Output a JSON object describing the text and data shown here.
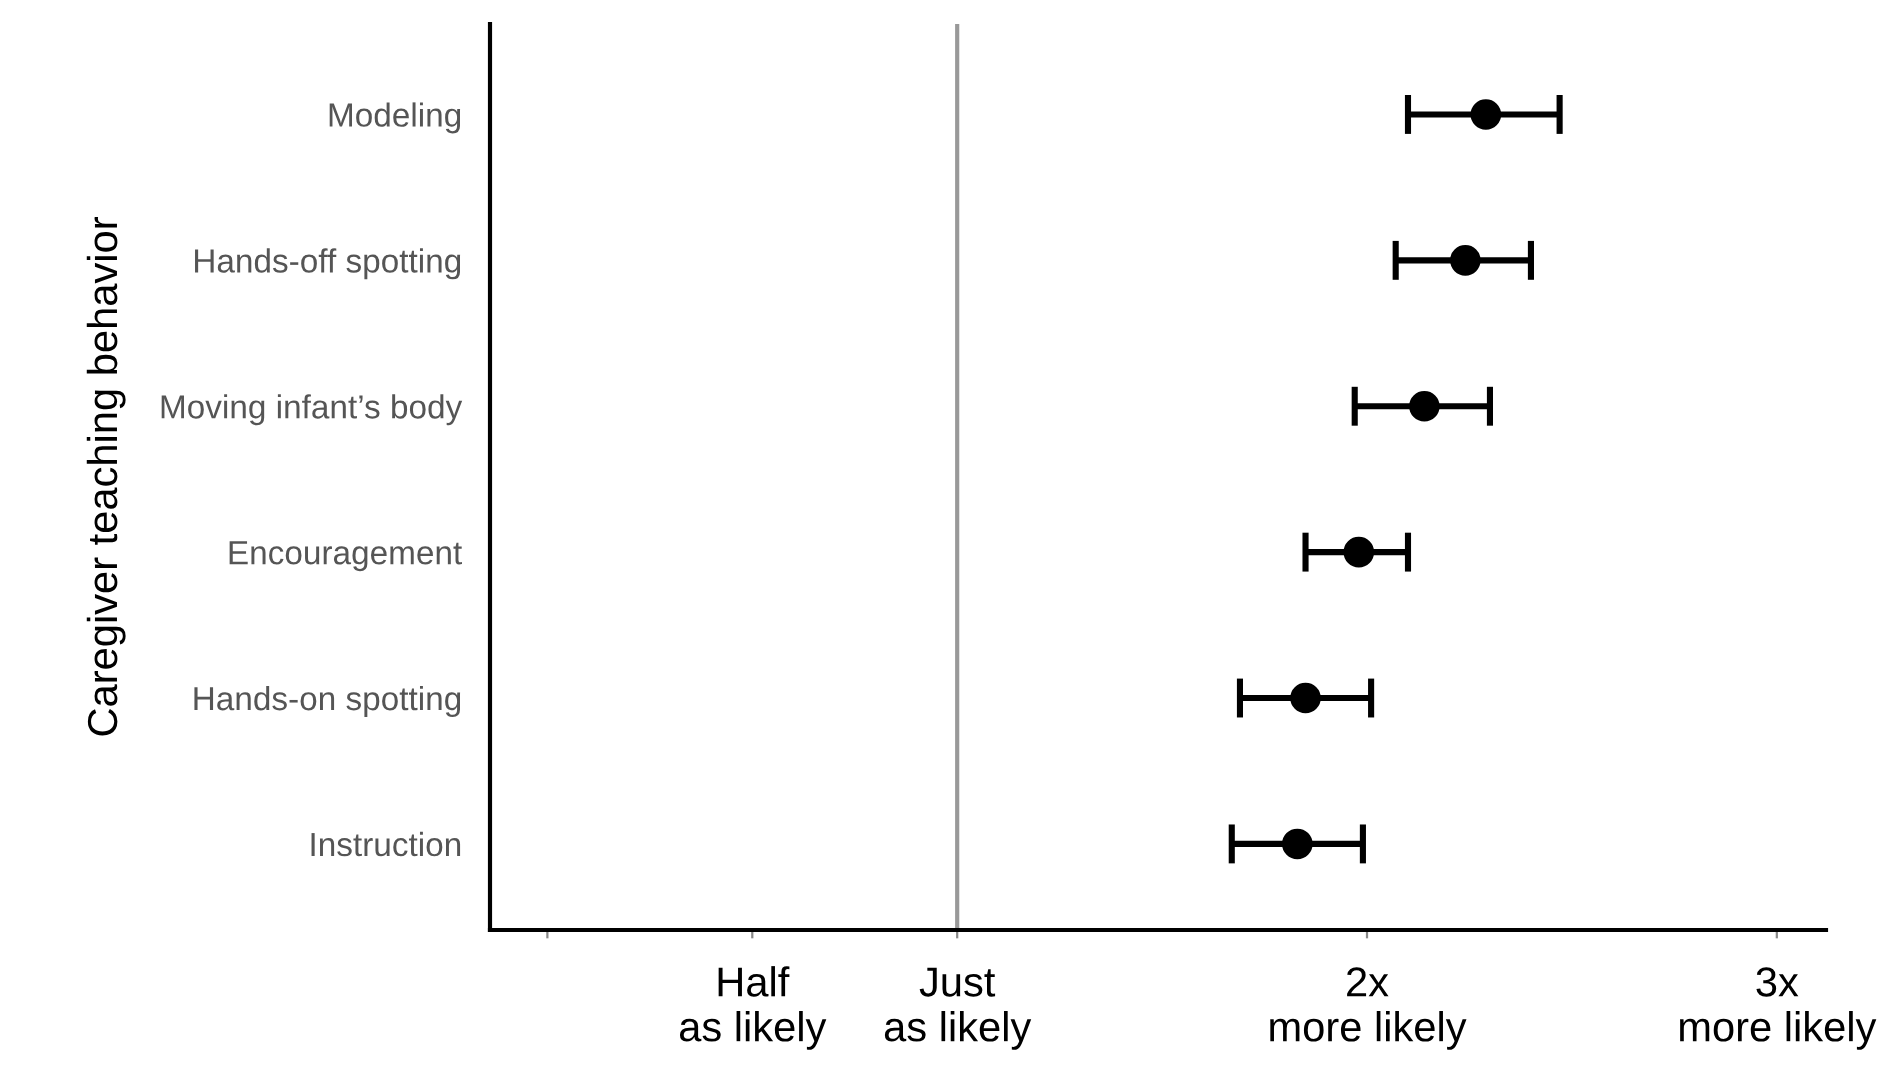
{
  "chart_data": {
    "type": "scatter",
    "orientation": "horizontal",
    "ylabel": "Caregiver teaching behavior",
    "categories": [
      "Modeling",
      "Hands-off spotting",
      "Moving infant’s body",
      "Encouragement",
      "Hands-on spotting",
      "Instruction"
    ],
    "values": [
      2.29,
      2.24,
      2.14,
      1.98,
      1.85,
      1.83
    ],
    "errors": [
      [
        2.1,
        2.47
      ],
      [
        2.07,
        2.4
      ],
      [
        1.97,
        2.3
      ],
      [
        1.85,
        2.1
      ],
      [
        1.69,
        2.01
      ],
      [
        1.67,
        1.99
      ]
    ],
    "color": "#000000",
    "marker": "circle",
    "xlim": [
      -0.14,
      3.12
    ],
    "xticks": [
      {
        "value": 0,
        "label": null
      },
      {
        "value": 0.5,
        "label": "Half\nas likely"
      },
      {
        "value": 1,
        "label": "Just\nas likely"
      },
      {
        "value": 2,
        "label": "2x\nmore likely"
      },
      {
        "value": 3,
        "label": "3x\nmore likely"
      }
    ],
    "ref_lines": [
      {
        "axis": "x",
        "value": 1,
        "color": "#999999"
      }
    ],
    "grid": false
  }
}
